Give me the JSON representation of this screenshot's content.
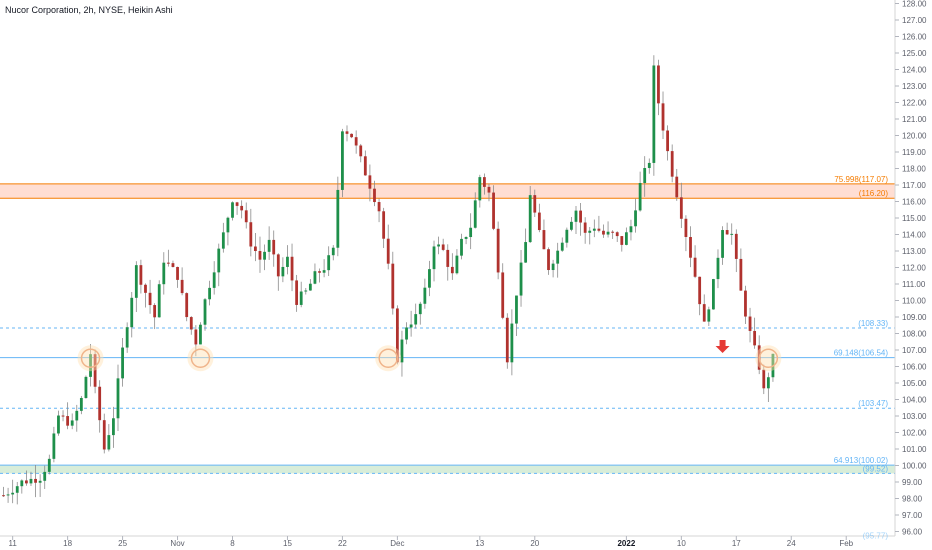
{
  "header": {
    "title": "Nucor Corporation, 2h, NYSE, Heikin Ashi"
  },
  "colors": {
    "up": "#26a69a",
    "down": "#ef5350",
    "body_up": "#1e8f4a",
    "body_down": "#b0322e",
    "wick": "#8a8a8a",
    "orange": "#f57c00",
    "blue": "#64b5f6",
    "green_zone": "#c8e6c9",
    "orange_zone": "#ffd0c0",
    "arrow": "#e53935"
  },
  "chart_data": {
    "type": "candlestick",
    "ylim": [
      96,
      128
    ],
    "yticks": [
      "128.00",
      "127.00",
      "126.00",
      "125.00",
      "124.00",
      "123.00",
      "122.00",
      "121.00",
      "120.00",
      "119.00",
      "118.00",
      "117.00",
      "116.00",
      "115.00",
      "114.00",
      "113.00",
      "112.00",
      "111.00",
      "110.00",
      "109.00",
      "108.00",
      "107.00",
      "106.00",
      "105.00",
      "104.00",
      "103.00",
      "102.00",
      "101.00",
      "100.00",
      "99.00",
      "98.00",
      "97.00",
      "96.00"
    ],
    "xticks": [
      {
        "label": "11",
        "index": 2
      },
      {
        "label": "18",
        "index": 14
      },
      {
        "label": "25",
        "index": 26
      },
      {
        "label": "Nov",
        "index": 38
      },
      {
        "label": "8",
        "index": 50
      },
      {
        "label": "15",
        "index": 62
      },
      {
        "label": "22",
        "index": 74
      },
      {
        "label": "Dec",
        "index": 86
      },
      {
        "label": "13",
        "index": 104
      },
      {
        "label": "20",
        "index": 116
      },
      {
        "label": "2022",
        "index": 136,
        "bold": true
      },
      {
        "label": "10",
        "index": 148
      },
      {
        "label": "17",
        "index": 160
      },
      {
        "label": "24",
        "index": 172
      },
      {
        "label": "Feb",
        "index": 184
      }
    ],
    "levels": [
      {
        "name": "fib-75",
        "price": 117.07,
        "label": "75.998(117.07)",
        "color": "orange",
        "style": "solid"
      },
      {
        "name": "level-116",
        "price": 116.2,
        "label": "(116.20)",
        "color": "orange",
        "style": "solid"
      },
      {
        "name": "level-108",
        "price": 108.33,
        "label": "(108.33)",
        "color": "blue",
        "style": "dashed"
      },
      {
        "name": "fib-69",
        "price": 106.54,
        "label": "69.148(106.54)",
        "color": "blue",
        "style": "solid"
      },
      {
        "name": "level-103",
        "price": 103.47,
        "label": "(103.47)",
        "color": "blue",
        "style": "dashed"
      },
      {
        "name": "fib-64",
        "price": 100.02,
        "label": "64.913(100.02)",
        "color": "blue",
        "style": "solid"
      },
      {
        "name": "level-99",
        "price": 99.52,
        "label": "(99.52)",
        "color": "blue",
        "style": "dashed"
      }
    ],
    "bottom_partial_label": "(95.77)",
    "zones": [
      {
        "name": "resistance-zone",
        "from": 116.2,
        "to": 117.07,
        "color": "orange_zone"
      },
      {
        "name": "support-zone",
        "from": 99.52,
        "to": 100.02,
        "color": "green_zone"
      }
    ],
    "circles": [
      {
        "index": 19,
        "price": 106.5
      },
      {
        "index": 43,
        "price": 106.5
      },
      {
        "index": 84,
        "price": 106.5
      },
      {
        "index": 167,
        "price": 106.5
      }
    ],
    "arrow": {
      "index": 157,
      "price": 107.0
    },
    "path": [
      [
        0,
        98.2
      ],
      [
        4,
        99.0
      ],
      [
        8,
        99.3
      ],
      [
        10,
        100.3
      ],
      [
        12,
        103.0
      ],
      [
        15,
        102.5
      ],
      [
        17,
        104.0
      ],
      [
        19,
        106.8
      ],
      [
        20,
        104.5
      ],
      [
        22,
        101.0
      ],
      [
        24,
        103.0
      ],
      [
        26,
        107.0
      ],
      [
        29,
        112.0
      ],
      [
        31,
        110.5
      ],
      [
        33,
        109.0
      ],
      [
        35,
        112.5
      ],
      [
        38,
        111.5
      ],
      [
        40,
        109.0
      ],
      [
        42,
        107.5
      ],
      [
        44,
        110.0
      ],
      [
        46,
        112.0
      ],
      [
        48,
        114.0
      ],
      [
        50,
        116.2
      ],
      [
        52,
        115.5
      ],
      [
        54,
        113.5
      ],
      [
        56,
        112.5
      ],
      [
        58,
        113.5
      ],
      [
        60,
        111.5
      ],
      [
        62,
        112.5
      ],
      [
        64,
        110.0
      ],
      [
        66,
        110.5
      ],
      [
        68,
        111.5
      ],
      [
        70,
        112.0
      ],
      [
        72,
        113.0
      ],
      [
        74,
        120.5
      ],
      [
        76,
        120.0
      ],
      [
        78,
        118.5
      ],
      [
        80,
        117.0
      ],
      [
        82,
        115.5
      ],
      [
        84,
        112.0
      ],
      [
        86,
        106.5
      ],
      [
        88,
        108.5
      ],
      [
        90,
        109.0
      ],
      [
        92,
        110.5
      ],
      [
        94,
        113.5
      ],
      [
        96,
        113.0
      ],
      [
        98,
        111.5
      ],
      [
        100,
        113.5
      ],
      [
        102,
        114.5
      ],
      [
        104,
        117.5
      ],
      [
        106,
        116.5
      ],
      [
        108,
        112.0
      ],
      [
        110,
        106.5
      ],
      [
        112,
        110.5
      ],
      [
        114,
        113.5
      ],
      [
        115,
        116.5
      ],
      [
        117,
        114.0
      ],
      [
        119,
        112.0
      ],
      [
        121,
        113.0
      ],
      [
        123,
        114.5
      ],
      [
        125,
        115.5
      ],
      [
        127,
        114.0
      ],
      [
        129,
        114.5
      ],
      [
        131,
        114.0
      ],
      [
        133,
        114.0
      ],
      [
        135,
        113.5
      ],
      [
        137,
        114.5
      ],
      [
        139,
        117.0
      ],
      [
        141,
        118.5
      ],
      [
        142,
        124.0
      ],
      [
        143,
        122.0
      ],
      [
        145,
        119.0
      ],
      [
        147,
        116.5
      ],
      [
        149,
        114.0
      ],
      [
        151,
        111.5
      ],
      [
        153,
        108.5
      ],
      [
        155,
        111.0
      ],
      [
        157,
        114.5
      ],
      [
        159,
        114.0
      ],
      [
        161,
        110.5
      ],
      [
        163,
        108.0
      ],
      [
        165,
        106.0
      ],
      [
        166,
        104.5
      ],
      [
        168,
        106.5
      ]
    ]
  }
}
